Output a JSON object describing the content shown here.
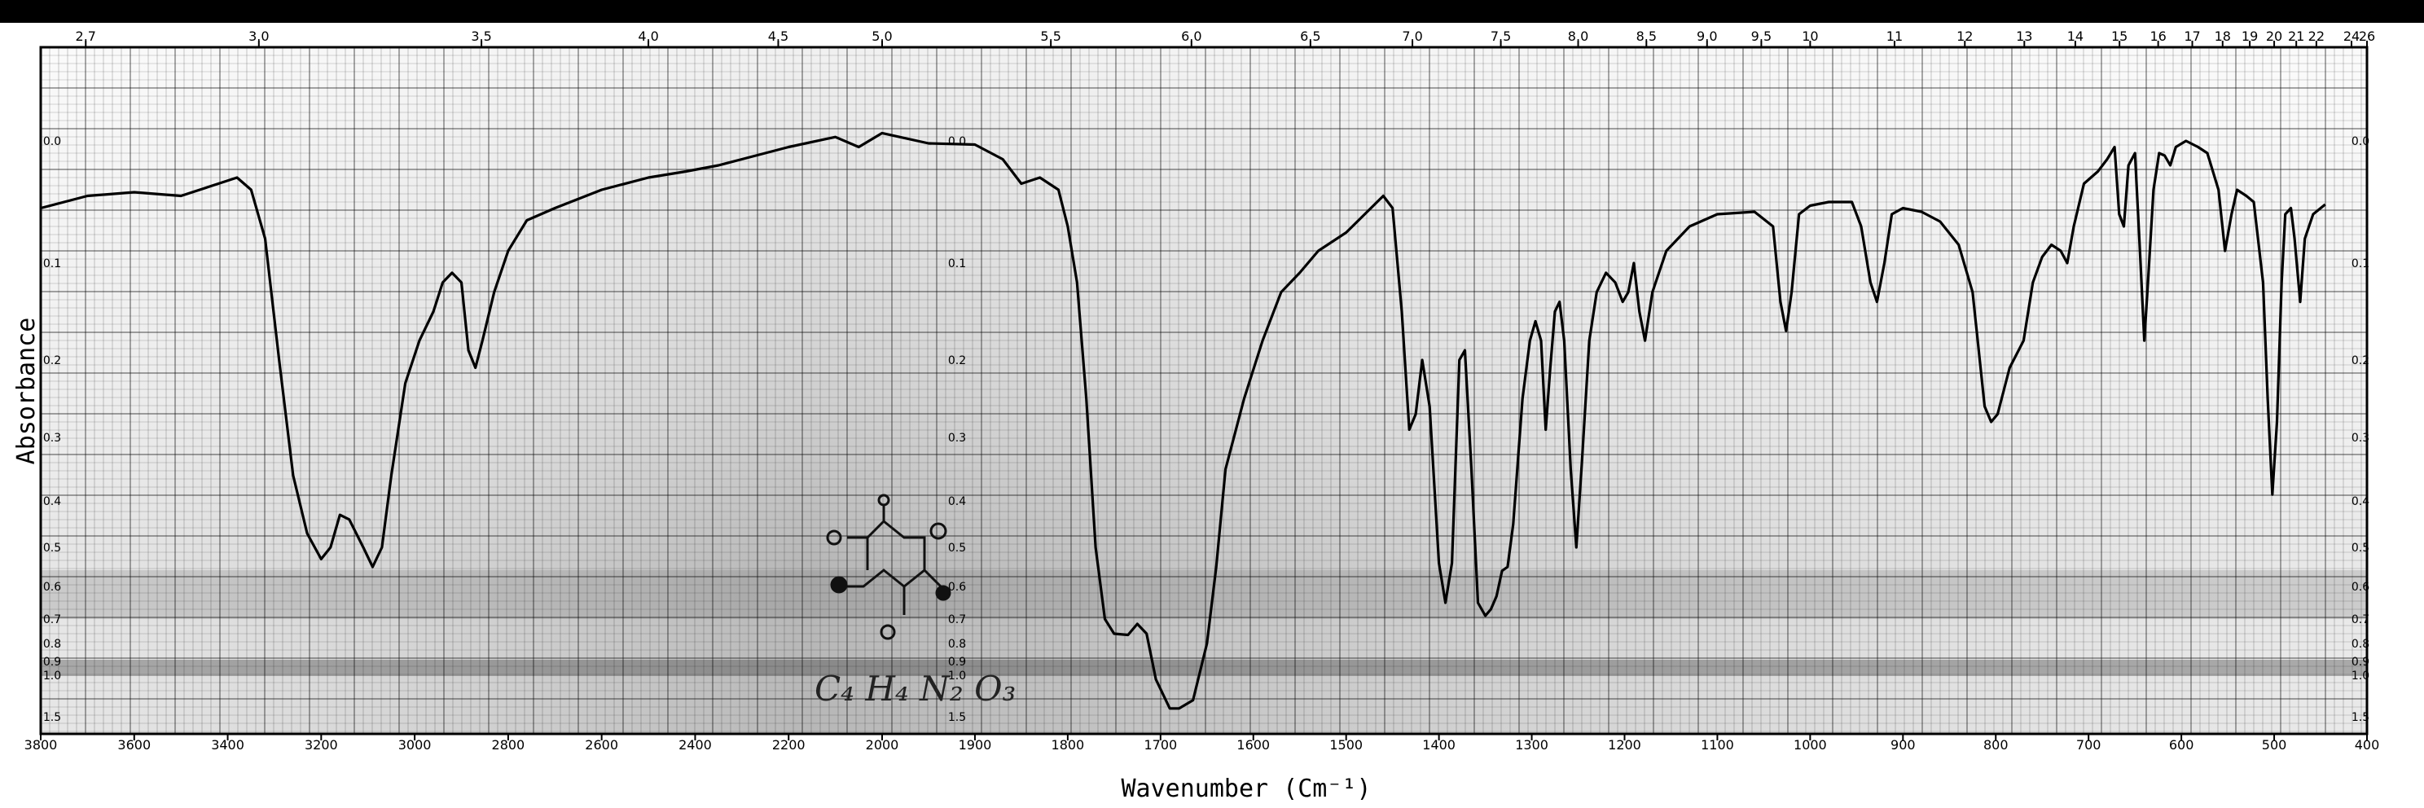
{
  "chart_data": {
    "type": "line",
    "title": "",
    "xlabel": "Wavenumber (Cm⁻¹)",
    "ylabel": "Absorbance",
    "xlim": [
      3800,
      400
    ],
    "x_ticks": [
      "3800",
      "3600",
      "3400",
      "3200",
      "3000",
      "2800",
      "2600",
      "2400",
      "2200",
      "2000",
      "1900",
      "1800",
      "1700",
      "1600",
      "1500",
      "1400",
      "1300",
      "1200",
      "1100",
      "1000",
      "900",
      "800",
      "700",
      "600",
      "500",
      "400"
    ],
    "top_axis_label": "",
    "top_ticks": [
      "2.7",
      "3.0",
      "3.5",
      "4.0",
      "4.5",
      "5.0",
      "5.5",
      "6.0",
      "6.5",
      "7.0",
      "7.5",
      "8.0",
      "8.5",
      "9.0",
      "9.5",
      "10",
      "11",
      "12",
      "13",
      "14",
      "15",
      "16",
      "17",
      "18",
      "19",
      "20",
      "21",
      "22",
      "24",
      "26"
    ],
    "absorbance_ticks": [
      "0.0",
      "0.1",
      "0.2",
      "0.3",
      "0.4",
      "0.5",
      "0.6",
      "0.7",
      "0.8",
      "0.9",
      "1.0",
      "1.5"
    ],
    "grid": true,
    "annotation": "C₄ H₄ N₂ O₃",
    "series": [
      {
        "name": "",
        "color": "#000000",
        "points": [
          [
            3800,
            0.055
          ],
          [
            3700,
            0.045
          ],
          [
            3600,
            0.042
          ],
          [
            3500,
            0.045
          ],
          [
            3420,
            0.035
          ],
          [
            3380,
            0.03
          ],
          [
            3350,
            0.04
          ],
          [
            3320,
            0.08
          ],
          [
            3290,
            0.2
          ],
          [
            3260,
            0.36
          ],
          [
            3230,
            0.47
          ],
          [
            3200,
            0.53
          ],
          [
            3180,
            0.5
          ],
          [
            3160,
            0.43
          ],
          [
            3140,
            0.44
          ],
          [
            3110,
            0.5
          ],
          [
            3090,
            0.55
          ],
          [
            3070,
            0.5
          ],
          [
            3050,
            0.36
          ],
          [
            3020,
            0.23
          ],
          [
            2990,
            0.18
          ],
          [
            2960,
            0.15
          ],
          [
            2940,
            0.12
          ],
          [
            2920,
            0.11
          ],
          [
            2900,
            0.12
          ],
          [
            2885,
            0.19
          ],
          [
            2870,
            0.21
          ],
          [
            2855,
            0.18
          ],
          [
            2830,
            0.13
          ],
          [
            2800,
            0.09
          ],
          [
            2760,
            0.065
          ],
          [
            2700,
            0.055
          ],
          [
            2600,
            0.04
          ],
          [
            2500,
            0.03
          ],
          [
            2420,
            0.025
          ],
          [
            2350,
            0.02
          ],
          [
            2300,
            0.015
          ],
          [
            2200,
            0.005
          ],
          [
            2100,
            -0.005
          ],
          [
            2050,
            0.005
          ],
          [
            2000,
            -0.01
          ],
          [
            1950,
            0.002
          ],
          [
            1900,
            0.003
          ],
          [
            1870,
            0.015
          ],
          [
            1850,
            0.035
          ],
          [
            1830,
            0.03
          ],
          [
            1810,
            0.04
          ],
          [
            1800,
            0.07
          ],
          [
            1790,
            0.12
          ],
          [
            1780,
            0.25
          ],
          [
            1770,
            0.5
          ],
          [
            1760,
            0.7
          ],
          [
            1750,
            0.76
          ],
          [
            1735,
            0.765
          ],
          [
            1725,
            0.72
          ],
          [
            1715,
            0.76
          ],
          [
            1705,
            1.05
          ],
          [
            1690,
            1.4
          ],
          [
            1680,
            1.4
          ],
          [
            1665,
            1.3
          ],
          [
            1650,
            0.8
          ],
          [
            1640,
            0.55
          ],
          [
            1630,
            0.35
          ],
          [
            1610,
            0.25
          ],
          [
            1590,
            0.18
          ],
          [
            1570,
            0.13
          ],
          [
            1550,
            0.11
          ],
          [
            1530,
            0.09
          ],
          [
            1500,
            0.075
          ],
          [
            1480,
            0.06
          ],
          [
            1460,
            0.045
          ],
          [
            1450,
            0.055
          ],
          [
            1440,
            0.15
          ],
          [
            1432,
            0.29
          ],
          [
            1425,
            0.27
          ],
          [
            1418,
            0.2
          ],
          [
            1410,
            0.26
          ],
          [
            1400,
            0.54
          ],
          [
            1393,
            0.65
          ],
          [
            1386,
            0.54
          ],
          [
            1378,
            0.2
          ],
          [
            1372,
            0.19
          ],
          [
            1365,
            0.35
          ],
          [
            1358,
            0.65
          ],
          [
            1350,
            0.69
          ],
          [
            1344,
            0.67
          ],
          [
            1338,
            0.63
          ],
          [
            1332,
            0.56
          ],
          [
            1326,
            0.55
          ],
          [
            1320,
            0.45
          ],
          [
            1310,
            0.25
          ],
          [
            1302,
            0.18
          ],
          [
            1296,
            0.16
          ],
          [
            1290,
            0.18
          ],
          [
            1285,
            0.29
          ],
          [
            1280,
            0.21
          ],
          [
            1275,
            0.15
          ],
          [
            1270,
            0.14
          ],
          [
            1265,
            0.18
          ],
          [
            1258,
            0.35
          ],
          [
            1252,
            0.5
          ],
          [
            1246,
            0.34
          ],
          [
            1238,
            0.18
          ],
          [
            1230,
            0.13
          ],
          [
            1220,
            0.11
          ],
          [
            1210,
            0.12
          ],
          [
            1202,
            0.14
          ],
          [
            1196,
            0.13
          ],
          [
            1190,
            0.1
          ],
          [
            1184,
            0.15
          ],
          [
            1178,
            0.18
          ],
          [
            1170,
            0.13
          ],
          [
            1155,
            0.09
          ],
          [
            1130,
            0.07
          ],
          [
            1100,
            0.06
          ],
          [
            1060,
            0.058
          ],
          [
            1040,
            0.07
          ],
          [
            1032,
            0.14
          ],
          [
            1026,
            0.17
          ],
          [
            1020,
            0.13
          ],
          [
            1012,
            0.06
          ],
          [
            1000,
            0.053
          ],
          [
            980,
            0.05
          ],
          [
            955,
            0.05
          ],
          [
            945,
            0.07
          ],
          [
            935,
            0.12
          ],
          [
            928,
            0.14
          ],
          [
            920,
            0.1
          ],
          [
            912,
            0.06
          ],
          [
            900,
            0.055
          ],
          [
            880,
            0.058
          ],
          [
            860,
            0.066
          ],
          [
            840,
            0.085
          ],
          [
            825,
            0.13
          ],
          [
            812,
            0.26
          ],
          [
            805,
            0.28
          ],
          [
            798,
            0.27
          ],
          [
            785,
            0.21
          ],
          [
            770,
            0.18
          ],
          [
            760,
            0.12
          ],
          [
            750,
            0.095
          ],
          [
            740,
            0.085
          ],
          [
            730,
            0.09
          ],
          [
            723,
            0.1
          ],
          [
            716,
            0.07
          ],
          [
            705,
            0.035
          ],
          [
            690,
            0.025
          ],
          [
            680,
            0.015
          ],
          [
            672,
            0.005
          ],
          [
            667,
            0.06
          ],
          [
            662,
            0.07
          ],
          [
            657,
            0.02
          ],
          [
            650,
            0.01
          ],
          [
            644,
            0.1
          ],
          [
            640,
            0.18
          ],
          [
            636,
            0.12
          ],
          [
            630,
            0.04
          ],
          [
            624,
            0.01
          ],
          [
            618,
            0.012
          ],
          [
            612,
            0.02
          ],
          [
            606,
            0.005
          ],
          [
            595,
            0.0
          ],
          [
            582,
            0.005
          ],
          [
            572,
            0.01
          ],
          [
            560,
            0.04
          ],
          [
            553,
            0.09
          ],
          [
            546,
            0.06
          ],
          [
            540,
            0.04
          ],
          [
            530,
            0.045
          ],
          [
            522,
            0.05
          ],
          [
            512,
            0.12
          ],
          [
            507,
            0.25
          ],
          [
            502,
            0.39
          ],
          [
            497,
            0.28
          ],
          [
            492,
            0.12
          ],
          [
            488,
            0.06
          ],
          [
            482,
            0.055
          ],
          [
            478,
            0.08
          ],
          [
            472,
            0.14
          ],
          [
            467,
            0.08
          ],
          [
            458,
            0.06
          ],
          [
            445,
            0.052
          ]
        ]
      }
    ]
  }
}
